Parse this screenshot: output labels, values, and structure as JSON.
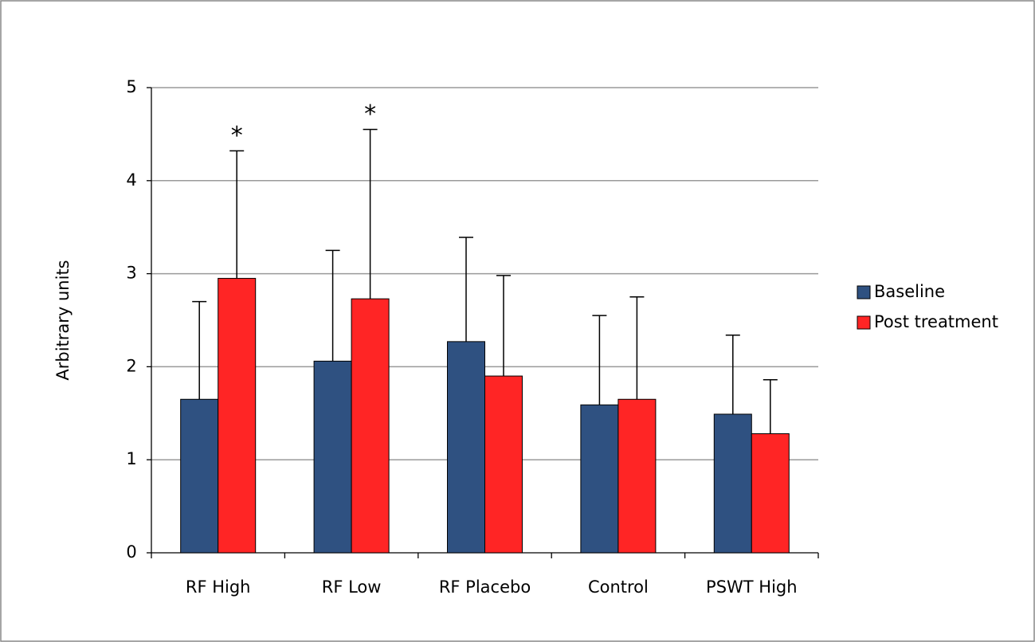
{
  "chart_data": {
    "type": "bar",
    "y_label": "Arbitrary units",
    "categories": [
      "RF High",
      "RF Low",
      "RF Placebo",
      "Control",
      "PSWT High"
    ],
    "series": [
      {
        "name": "Baseline",
        "color": "#2f5181",
        "values": [
          1.65,
          2.06,
          2.27,
          1.59,
          1.49
        ],
        "errors": [
          1.05,
          1.19,
          1.12,
          0.96,
          0.85
        ]
      },
      {
        "name": "Post treatment",
        "color": "#ff2525",
        "values": [
          2.95,
          2.73,
          1.9,
          1.65,
          1.28
        ],
        "errors": [
          1.37,
          1.82,
          1.08,
          1.1,
          0.58
        ],
        "significance": [
          "*",
          "*",
          null,
          null,
          null
        ]
      }
    ],
    "ylim": [
      0,
      5
    ],
    "yticks": [
      0,
      1,
      2,
      3,
      4,
      5
    ],
    "grid": true,
    "legend": "right"
  }
}
